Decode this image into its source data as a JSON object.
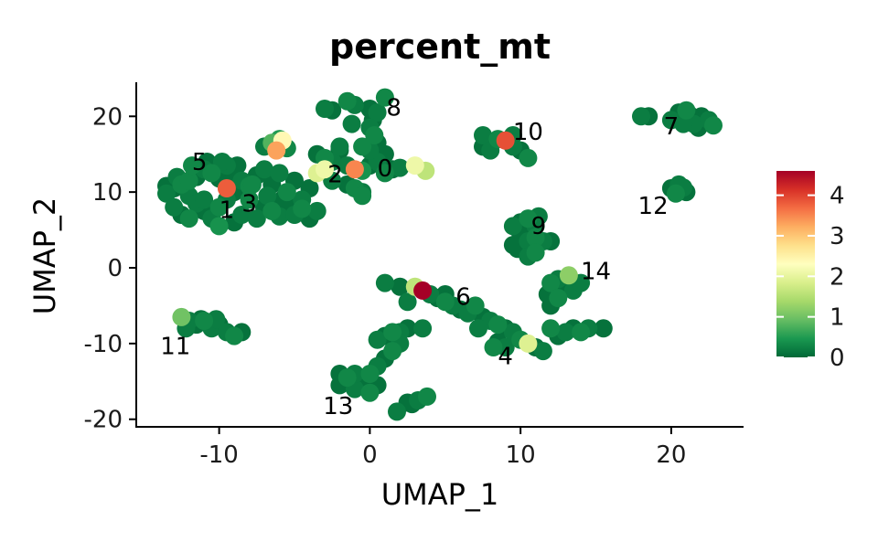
{
  "chart_data": {
    "type": "scatter",
    "title": "percent_mt",
    "xlabel": "UMAP_1",
    "ylabel": "UMAP_2",
    "xlim": [
      -15.5,
      24.8
    ],
    "ylim": [
      -21.0,
      24.5
    ],
    "xticks": [
      -10,
      0,
      10,
      20
    ],
    "xtick_labels": [
      "-10",
      "0",
      "10",
      "20"
    ],
    "yticks": [
      -20,
      -10,
      0,
      10,
      20
    ],
    "ytick_labels": [
      "-20",
      "-10",
      "0",
      "10",
      "20"
    ],
    "color_scale": {
      "name": "RdYlGn (reversed)",
      "min": 0,
      "max": 4.6,
      "ticks": [
        0,
        1,
        2,
        3,
        4
      ],
      "tick_labels": [
        "0",
        "1",
        "2",
        "3",
        "4"
      ],
      "stops": [
        "#006837",
        "#1a9850",
        "#66bd63",
        "#a6d96a",
        "#d9ef8b",
        "#ffffbf",
        "#fee08b",
        "#fdae61",
        "#f46d43",
        "#d73027",
        "#a50026"
      ]
    },
    "legend_position": "right",
    "grid": false,
    "clusters": [
      {
        "label": "0",
        "x": 1.0,
        "y": 13.0
      },
      {
        "label": "1",
        "x": -9.5,
        "y": 7.5
      },
      {
        "label": "2",
        "x": -2.3,
        "y": 12.2
      },
      {
        "label": "3",
        "x": -8.0,
        "y": 8.3
      },
      {
        "label": "4",
        "x": 9.0,
        "y": -11.8
      },
      {
        "label": "5",
        "x": -11.3,
        "y": 13.8
      },
      {
        "label": "6",
        "x": 6.2,
        "y": -4.0
      },
      {
        "label": "7",
        "x": 20.0,
        "y": 18.5
      },
      {
        "label": "8",
        "x": 1.6,
        "y": 21.0
      },
      {
        "label": "9",
        "x": 11.2,
        "y": 5.4
      },
      {
        "label": "10",
        "x": 10.5,
        "y": 17.8
      },
      {
        "label": "11",
        "x": -12.9,
        "y": -10.5
      },
      {
        "label": "12",
        "x": 18.8,
        "y": 8.0
      },
      {
        "label": "13",
        "x": -2.1,
        "y": -18.4
      },
      {
        "label": "14",
        "x": 15.0,
        "y": -0.6
      }
    ],
    "points": [
      [
        -13.5,
        9.8,
        0.2
      ],
      [
        -13.0,
        10.5,
        0.1
      ],
      [
        -12.5,
        11.0,
        0.3
      ],
      [
        -12.0,
        9.5,
        0.2
      ],
      [
        -11.5,
        12.0,
        0.1
      ],
      [
        -11.0,
        13.0,
        0.2
      ],
      [
        -10.5,
        12.5,
        0.3
      ],
      [
        -10.0,
        11.8,
        0.1
      ],
      [
        -9.5,
        13.5,
        0.2
      ],
      [
        -9.0,
        12.0,
        0.1
      ],
      [
        -8.5,
        11.5,
        0.2
      ],
      [
        -8.0,
        10.8,
        0.3
      ],
      [
        -7.5,
        12.2,
        0.1
      ],
      [
        -7.0,
        13.0,
        0.2
      ],
      [
        -6.5,
        11.0,
        0.1
      ],
      [
        -6.0,
        12.5,
        0.2
      ],
      [
        -5.5,
        10.0,
        0.3
      ],
      [
        -5.0,
        11.5,
        0.1
      ],
      [
        -4.5,
        9.0,
        0.2
      ],
      [
        -4.0,
        10.5,
        0.1
      ],
      [
        -13.0,
        8.0,
        0.2
      ],
      [
        -12.5,
        7.0,
        0.1
      ],
      [
        -12.0,
        6.5,
        0.3
      ],
      [
        -11.5,
        8.5,
        0.2
      ],
      [
        -11.0,
        7.5,
        0.1
      ],
      [
        -10.5,
        6.5,
        0.2
      ],
      [
        -10.0,
        8.0,
        0.3
      ],
      [
        -9.5,
        10.5,
        3.8
      ],
      [
        -9.0,
        6.0,
        0.1
      ],
      [
        -8.5,
        7.0,
        0.2
      ],
      [
        -8.0,
        9.0,
        0.3
      ],
      [
        -7.5,
        6.5,
        0.2
      ],
      [
        -7.0,
        8.0,
        0.1
      ],
      [
        -6.5,
        7.5,
        0.3
      ],
      [
        -6.0,
        6.8,
        0.2
      ],
      [
        -5.5,
        8.2,
        0.1
      ],
      [
        -5.0,
        7.0,
        0.2
      ],
      [
        -4.5,
        7.8,
        0.3
      ],
      [
        -4.0,
        6.5,
        0.1
      ],
      [
        -3.5,
        7.5,
        0.2
      ],
      [
        -10.0,
        5.5,
        0.4
      ],
      [
        -9.5,
        9.0,
        0.2
      ],
      [
        -9.0,
        10.0,
        0.1
      ],
      [
        -12.0,
        11.5,
        0.3
      ],
      [
        -11.0,
        9.0,
        0.2
      ],
      [
        -13.5,
        10.8,
        0.1
      ],
      [
        -12.8,
        12.0,
        0.2
      ],
      [
        -11.8,
        13.5,
        0.3
      ],
      [
        -10.8,
        14.0,
        0.1
      ],
      [
        -9.8,
        14.0,
        0.2
      ],
      [
        -8.8,
        13.5,
        0.1
      ],
      [
        -7.8,
        11.0,
        0.3
      ],
      [
        -6.8,
        9.5,
        0.2
      ],
      [
        -5.8,
        9.0,
        0.1
      ],
      [
        -6.5,
        16.5,
        0.8
      ],
      [
        -6.0,
        17.0,
        0.5
      ],
      [
        -5.5,
        15.8,
        0.3
      ],
      [
        -7.0,
        16.0,
        0.2
      ],
      [
        -6.2,
        15.5,
        3.3
      ],
      [
        -5.8,
        16.8,
        2.4
      ],
      [
        -3.5,
        12.5,
        1.9
      ],
      [
        -3.0,
        13.0,
        2.1
      ],
      [
        -2.5,
        14.0,
        0.2
      ],
      [
        -3.0,
        14.5,
        0.3
      ],
      [
        -2.0,
        15.5,
        0.1
      ],
      [
        -1.5,
        13.5,
        0.2
      ],
      [
        -1.0,
        13.0,
        3.5
      ],
      [
        -0.5,
        12.8,
        0.4
      ],
      [
        -2.5,
        11.5,
        0.2
      ],
      [
        -1.5,
        11.0,
        0.1
      ],
      [
        -1.0,
        10.5,
        0.3
      ],
      [
        -0.5,
        10.0,
        0.2
      ],
      [
        0.0,
        13.5,
        0.1
      ],
      [
        0.5,
        14.0,
        0.2
      ],
      [
        1.0,
        12.5,
        0.3
      ],
      [
        1.5,
        13.0,
        0.1
      ],
      [
        2.0,
        13.2,
        0.2
      ],
      [
        -0.5,
        9.5,
        0.3
      ],
      [
        -3.5,
        15.0,
        0.1
      ],
      [
        -2.0,
        16.0,
        0.2
      ],
      [
        -3.0,
        21.0,
        0.2
      ],
      [
        -2.5,
        20.8,
        0.1
      ],
      [
        -1.5,
        22.0,
        0.3
      ],
      [
        -1.0,
        21.5,
        0.2
      ],
      [
        0.0,
        21.0,
        0.1
      ],
      [
        0.5,
        20.5,
        0.2
      ],
      [
        1.0,
        22.5,
        0.3
      ],
      [
        0.2,
        19.5,
        0.1
      ],
      [
        0.0,
        18.5,
        0.2
      ],
      [
        0.3,
        17.5,
        0.3
      ],
      [
        0.5,
        16.5,
        0.1
      ],
      [
        0.0,
        15.5,
        0.2
      ],
      [
        -0.5,
        16.0,
        0.3
      ],
      [
        1.0,
        15.0,
        0.1
      ],
      [
        -1.2,
        19.0,
        0.2
      ],
      [
        3.0,
        13.5,
        2.1
      ],
      [
        3.7,
        12.8,
        1.6
      ],
      [
        7.5,
        17.5,
        0.2
      ],
      [
        8.0,
        16.5,
        0.1
      ],
      [
        8.5,
        17.0,
        0.3
      ],
      [
        9.0,
        16.8,
        3.9
      ],
      [
        9.5,
        16.0,
        0.2
      ],
      [
        10.0,
        15.5,
        0.1
      ],
      [
        10.5,
        14.5,
        0.3
      ],
      [
        8.0,
        15.5,
        0.2
      ],
      [
        7.5,
        16.0,
        0.1
      ],
      [
        9.5,
        17.5,
        0.2
      ],
      [
        18.0,
        20.0,
        0.2
      ],
      [
        18.5,
        20.0,
        0.1
      ],
      [
        20.0,
        19.5,
        0.2
      ],
      [
        20.5,
        20.5,
        0.1
      ],
      [
        21.0,
        20.8,
        0.3
      ],
      [
        21.5,
        19.0,
        0.2
      ],
      [
        22.0,
        20.0,
        0.1
      ],
      [
        22.5,
        19.5,
        0.2
      ],
      [
        22.8,
        18.8,
        0.3
      ],
      [
        21.8,
        18.5,
        0.1
      ],
      [
        20.8,
        19.0,
        0.2
      ],
      [
        21.2,
        20.2,
        0.1
      ],
      [
        20.0,
        10.5,
        0.1
      ],
      [
        20.5,
        11.0,
        0.2
      ],
      [
        21.0,
        10.0,
        0.1
      ],
      [
        20.3,
        9.8,
        0.3
      ],
      [
        20.8,
        10.6,
        0.2
      ],
      [
        9.5,
        5.5,
        0.2
      ],
      [
        10.0,
        6.0,
        0.1
      ],
      [
        10.5,
        6.5,
        0.3
      ],
      [
        11.0,
        5.5,
        0.2
      ],
      [
        10.0,
        4.5,
        0.1
      ],
      [
        10.5,
        3.5,
        0.2
      ],
      [
        11.0,
        4.0,
        0.3
      ],
      [
        9.5,
        3.0,
        0.1
      ],
      [
        11.5,
        3.5,
        0.2
      ],
      [
        12.0,
        3.5,
        0.1
      ],
      [
        11.0,
        2.0,
        0.3
      ],
      [
        10.5,
        1.5,
        0.2
      ],
      [
        9.8,
        2.5,
        0.1
      ],
      [
        11.2,
        6.8,
        0.2
      ],
      [
        12.0,
        -2.0,
        0.3
      ],
      [
        12.5,
        -1.5,
        0.2
      ],
      [
        13.0,
        -2.5,
        0.1
      ],
      [
        13.5,
        -3.0,
        0.2
      ],
      [
        12.5,
        -4.0,
        0.3
      ],
      [
        12.0,
        -5.0,
        0.1
      ],
      [
        14.0,
        -2.0,
        0.2
      ],
      [
        13.2,
        -1.0,
        1.2
      ],
      [
        11.8,
        -3.5,
        0.1
      ],
      [
        1.0,
        -2.0,
        0.2
      ],
      [
        2.0,
        -2.5,
        0.1
      ],
      [
        3.0,
        -2.5,
        1.6
      ],
      [
        3.5,
        -3.0,
        4.6
      ],
      [
        4.0,
        -3.5,
        0.2
      ],
      [
        4.5,
        -4.0,
        0.1
      ],
      [
        5.0,
        -4.5,
        0.3
      ],
      [
        5.5,
        -5.0,
        0.2
      ],
      [
        6.0,
        -5.5,
        0.1
      ],
      [
        6.5,
        -6.0,
        0.2
      ],
      [
        7.0,
        -5.0,
        0.3
      ],
      [
        7.5,
        -6.5,
        0.1
      ],
      [
        8.0,
        -7.0,
        0.2
      ],
      [
        8.5,
        -7.5,
        0.3
      ],
      [
        9.0,
        -8.0,
        0.1
      ],
      [
        9.5,
        -8.5,
        0.2
      ],
      [
        10.0,
        -9.5,
        0.3
      ],
      [
        10.5,
        -10.0,
        1.9
      ],
      [
        11.0,
        -10.5,
        0.1
      ],
      [
        11.5,
        -11.0,
        0.2
      ],
      [
        12.0,
        -8.0,
        0.3
      ],
      [
        12.5,
        -9.0,
        0.1
      ],
      [
        13.0,
        -8.5,
        0.2
      ],
      [
        13.5,
        -8.0,
        0.1
      ],
      [
        14.0,
        -8.5,
        0.3
      ],
      [
        14.5,
        -8.0,
        0.2
      ],
      [
        15.5,
        -8.0,
        0.1
      ],
      [
        9.0,
        -10.5,
        0.2
      ],
      [
        8.5,
        -9.8,
        0.1
      ],
      [
        7.2,
        -8.0,
        0.2
      ],
      [
        2.5,
        -4.5,
        0.2
      ],
      [
        5.0,
        -3.5,
        0.1
      ],
      [
        8.2,
        -10.5,
        0.3
      ],
      [
        -12.5,
        -6.5,
        1.0
      ],
      [
        -12.0,
        -7.0,
        0.2
      ],
      [
        -11.5,
        -7.5,
        0.1
      ],
      [
        -11.0,
        -7.0,
        0.3
      ],
      [
        -10.5,
        -8.0,
        0.2
      ],
      [
        -10.0,
        -7.5,
        0.1
      ],
      [
        -9.5,
        -8.5,
        0.2
      ],
      [
        -9.0,
        -9.0,
        0.3
      ],
      [
        -8.5,
        -8.5,
        0.1
      ],
      [
        -12.2,
        -8.0,
        0.2
      ],
      [
        -11.2,
        -6.8,
        0.1
      ],
      [
        -10.2,
        -6.8,
        0.2
      ],
      [
        0.5,
        -9.5,
        0.2
      ],
      [
        1.0,
        -9.0,
        0.1
      ],
      [
        1.5,
        -8.5,
        0.3
      ],
      [
        2.0,
        -8.5,
        0.2
      ],
      [
        2.5,
        -8.0,
        0.1
      ],
      [
        2.0,
        -10.0,
        0.2
      ],
      [
        1.5,
        -11.0,
        0.3
      ],
      [
        1.0,
        -12.0,
        0.1
      ],
      [
        0.5,
        -13.0,
        0.2
      ],
      [
        0.0,
        -14.0,
        0.3
      ],
      [
        -0.5,
        -15.0,
        0.1
      ],
      [
        -1.0,
        -16.0,
        0.2
      ],
      [
        -1.5,
        -14.5,
        0.3
      ],
      [
        -2.0,
        -15.5,
        0.1
      ],
      [
        -1.0,
        -14.0,
        0.2
      ],
      [
        0.0,
        -16.5,
        0.3
      ],
      [
        0.5,
        -15.5,
        0.1
      ],
      [
        1.8,
        -19.0,
        0.2
      ],
      [
        2.8,
        -18.0,
        0.1
      ],
      [
        3.2,
        -17.5,
        0.2
      ],
      [
        3.8,
        -17.0,
        0.3
      ],
      [
        2.5,
        -17.8,
        0.1
      ],
      [
        3.5,
        -8.0,
        0.2
      ],
      [
        -2.0,
        -14.0,
        0.1
      ]
    ]
  }
}
